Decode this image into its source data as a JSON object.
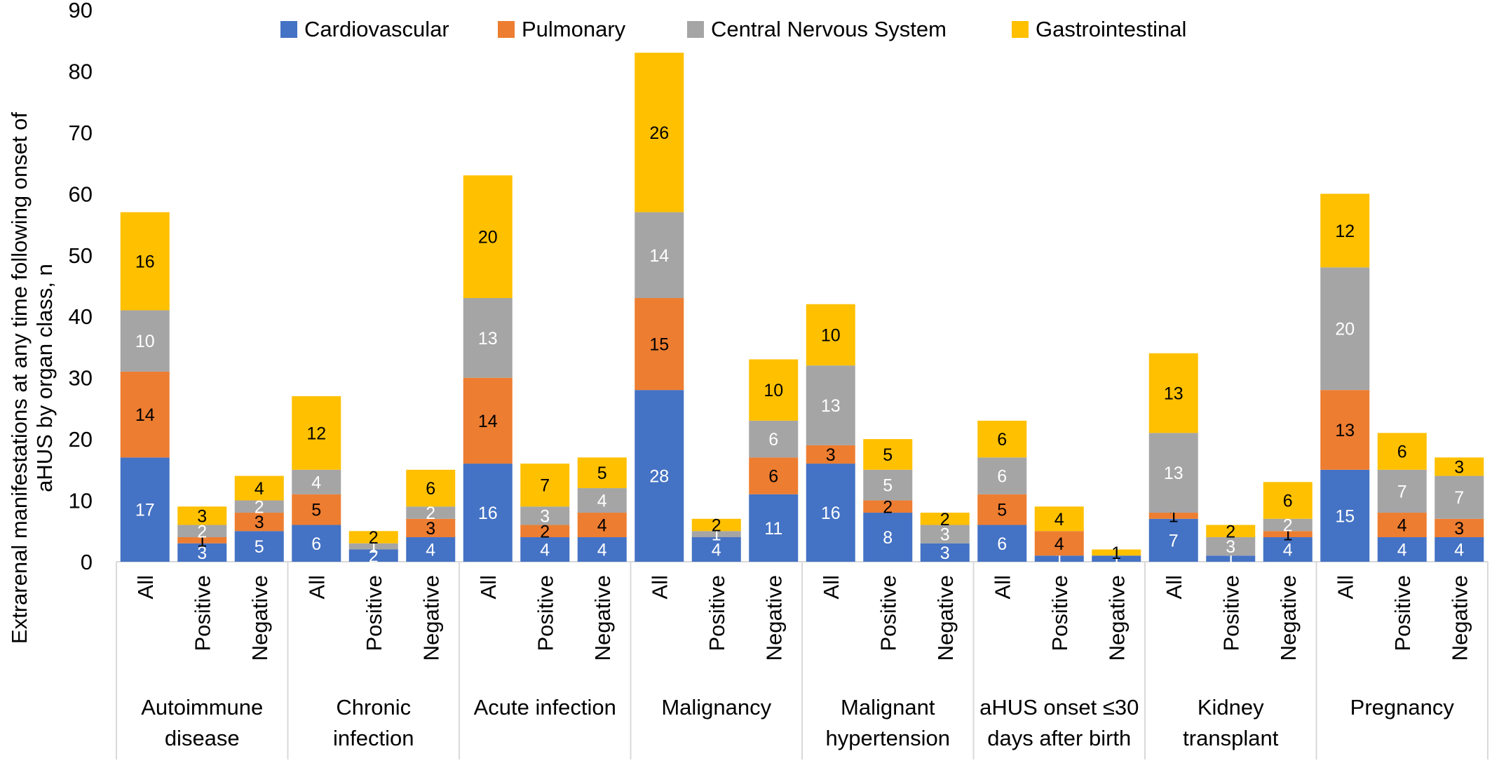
{
  "chart_data": {
    "type": "bar",
    "stacked": true,
    "title": "",
    "xlabel": "",
    "ylabel": "Extrarenal manifestations at any time following onset of aHUS by organ class, n",
    "ylim": [
      0,
      90
    ],
    "yticks": [
      0,
      10,
      20,
      30,
      40,
      50,
      60,
      70,
      80,
      90
    ],
    "grid": false,
    "legend_position": "top",
    "groups": [
      {
        "name": "Autoimmune disease",
        "name_lines": [
          "Autoimmune",
          "disease"
        ]
      },
      {
        "name": "Chronic infection",
        "name_lines": [
          "Chronic",
          "infection"
        ]
      },
      {
        "name": "Acute infection",
        "name_lines": [
          "Acute infection"
        ]
      },
      {
        "name": "Malignancy",
        "name_lines": [
          "Malignancy"
        ]
      },
      {
        "name": "Malignant hypertension",
        "name_lines": [
          "Malignant",
          "hypertension"
        ]
      },
      {
        "name": "aHUS onset ≤30 days after birth",
        "name_lines": [
          "aHUS onset ≤30",
          "days after birth"
        ]
      },
      {
        "name": "Kidney transplant",
        "name_lines": [
          "Kidney",
          "transplant"
        ]
      },
      {
        "name": "Pregnancy",
        "name_lines": [
          "Pregnancy"
        ]
      }
    ],
    "subcategories": [
      "All",
      "Positive",
      "Negative"
    ],
    "series": [
      {
        "name": "Cardiovascular",
        "color": "#4472C4",
        "label_color": "#ffffff",
        "values": [
          17,
          3,
          5,
          6,
          2,
          4,
          16,
          4,
          4,
          28,
          4,
          11,
          16,
          8,
          3,
          6,
          1,
          1,
          7,
          1,
          4,
          15,
          4,
          4
        ]
      },
      {
        "name": "Pulmonary",
        "color": "#ED7D31",
        "label_color": "#000000",
        "values": [
          14,
          1,
          3,
          5,
          0,
          3,
          14,
          2,
          4,
          15,
          0,
          6,
          3,
          2,
          0,
          5,
          4,
          0,
          1,
          0,
          1,
          13,
          4,
          3
        ]
      },
      {
        "name": "Central Nervous System",
        "color": "#A5A5A5",
        "label_color": "#ffffff",
        "values": [
          10,
          2,
          2,
          4,
          1,
          2,
          13,
          3,
          4,
          14,
          1,
          6,
          13,
          5,
          3,
          6,
          0,
          0,
          13,
          3,
          2,
          20,
          7,
          7
        ]
      },
      {
        "name": "Gastrointestinal",
        "color": "#FFC000",
        "label_color": "#000000",
        "values": [
          16,
          3,
          4,
          12,
          2,
          6,
          20,
          7,
          5,
          26,
          2,
          10,
          10,
          5,
          2,
          6,
          4,
          1,
          13,
          2,
          6,
          12,
          6,
          3
        ]
      }
    ]
  }
}
